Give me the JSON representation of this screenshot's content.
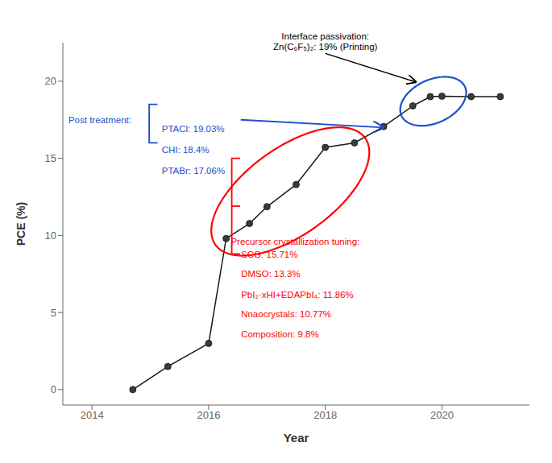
{
  "chart_data": {
    "type": "line",
    "x": [
      2014.7,
      2015.3,
      2016.0,
      2016.3,
      2016.7,
      2017.0,
      2017.5,
      2018.0,
      2018.5,
      2019.0,
      2019.5,
      2019.8,
      2020.0,
      2020.5,
      2021.0
    ],
    "values": [
      0.0,
      1.5,
      3.0,
      9.8,
      10.77,
      11.86,
      13.3,
      15.71,
      16.0,
      17.06,
      18.4,
      19.0,
      19.03,
      19.0,
      19.0
    ],
    "color": "#1a1a1a",
    "marker": "circle",
    "xlabel": "Year",
    "ylabel": "PCE (%)",
    "xlim": [
      2013.5,
      2021.5
    ],
    "ylim": [
      -1,
      22.5
    ],
    "xticks": [
      2014,
      2016,
      2018,
      2020
    ],
    "yticks": [
      0,
      5,
      10,
      15,
      20
    ],
    "grid": false,
    "annotations": [
      {
        "text": "Interface passivation:\nZn(C₆F₅)₂: 19% (Printing)",
        "color": "#000000"
      },
      {
        "text": "Post treatment:",
        "color": "#1a50cc"
      },
      {
        "text": "PTACl: 19.03%",
        "color": "#1a50cc"
      },
      {
        "text": "CHI: 18.4%",
        "color": "#1a50cc"
      },
      {
        "text": "PTABr: 17.06%",
        "color": "#1a50cc"
      },
      {
        "text": "Precursor crystallization tuning:",
        "color": "#ff0000"
      },
      {
        "text": "SCG: 15.71%",
        "color": "#ff0000"
      },
      {
        "text": "DMSO: 13.3%",
        "color": "#ff0000"
      },
      {
        "text": "PbI₂·xHI+EDAPbI₄: 11.86%",
        "color": "#ff0000"
      },
      {
        "text": "Nnaocrystals: 10.77%",
        "color": "#ff0000"
      },
      {
        "text": "Composition: 9.8%",
        "color": "#ff0000"
      }
    ]
  }
}
